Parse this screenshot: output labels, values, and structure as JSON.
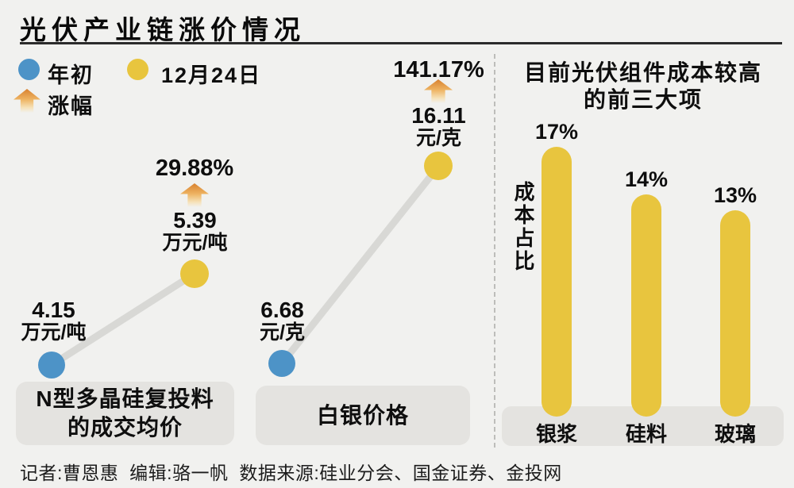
{
  "title": "光伏产业链涨价情况",
  "legend": {
    "start": "年初",
    "end": "12月24日",
    "change": "涨幅"
  },
  "colors": {
    "background": "#f1f1ef",
    "start_dot_blue": "#4d93c7",
    "end_dot_yellow": "#e8c53e",
    "bar_yellow": "#e8c53e",
    "connector_gray": "#d8d8d5",
    "label_box_gray": "#e4e3e0",
    "arrow_orange": "#d8812e"
  },
  "chart_data": [
    {
      "type": "line",
      "name": "N型多晶硅复投料的成交均价",
      "name_line1": "N型多晶硅复投料",
      "name_line2": "的成交均价",
      "x": [
        "年初",
        "12月24日"
      ],
      "values": [
        4.15,
        5.39
      ],
      "unit": "万元/吨",
      "start_value": "4.15",
      "start_unit": "万元/吨",
      "end_value": "5.39",
      "end_unit": "万元/吨",
      "change_pct": "29.88%"
    },
    {
      "type": "line",
      "name": "白银价格",
      "x": [
        "年初",
        "12月24日"
      ],
      "values": [
        6.68,
        16.11
      ],
      "unit": "元/克",
      "start_value": "6.68",
      "start_unit": "元/克",
      "end_value": "16.11",
      "end_unit": "元/克",
      "change_pct": "141.17%"
    },
    {
      "type": "bar",
      "title": "目前光伏组件成本较高的前三大项",
      "title_line1": "目前光伏组件成本较高",
      "title_line2": "的前三大项",
      "ylabel": "成本占比",
      "categories": [
        "银浆",
        "硅料",
        "玻璃"
      ],
      "values": [
        17,
        14,
        13
      ],
      "value_labels": [
        "17%",
        "14%",
        "13%"
      ],
      "ylim": [
        0,
        20
      ],
      "legend_position": "none",
      "grid": false
    }
  ],
  "footer": "记者:曹恩惠  编辑:骆一帆  数据来源:硅业分会、国金证券、金投网"
}
